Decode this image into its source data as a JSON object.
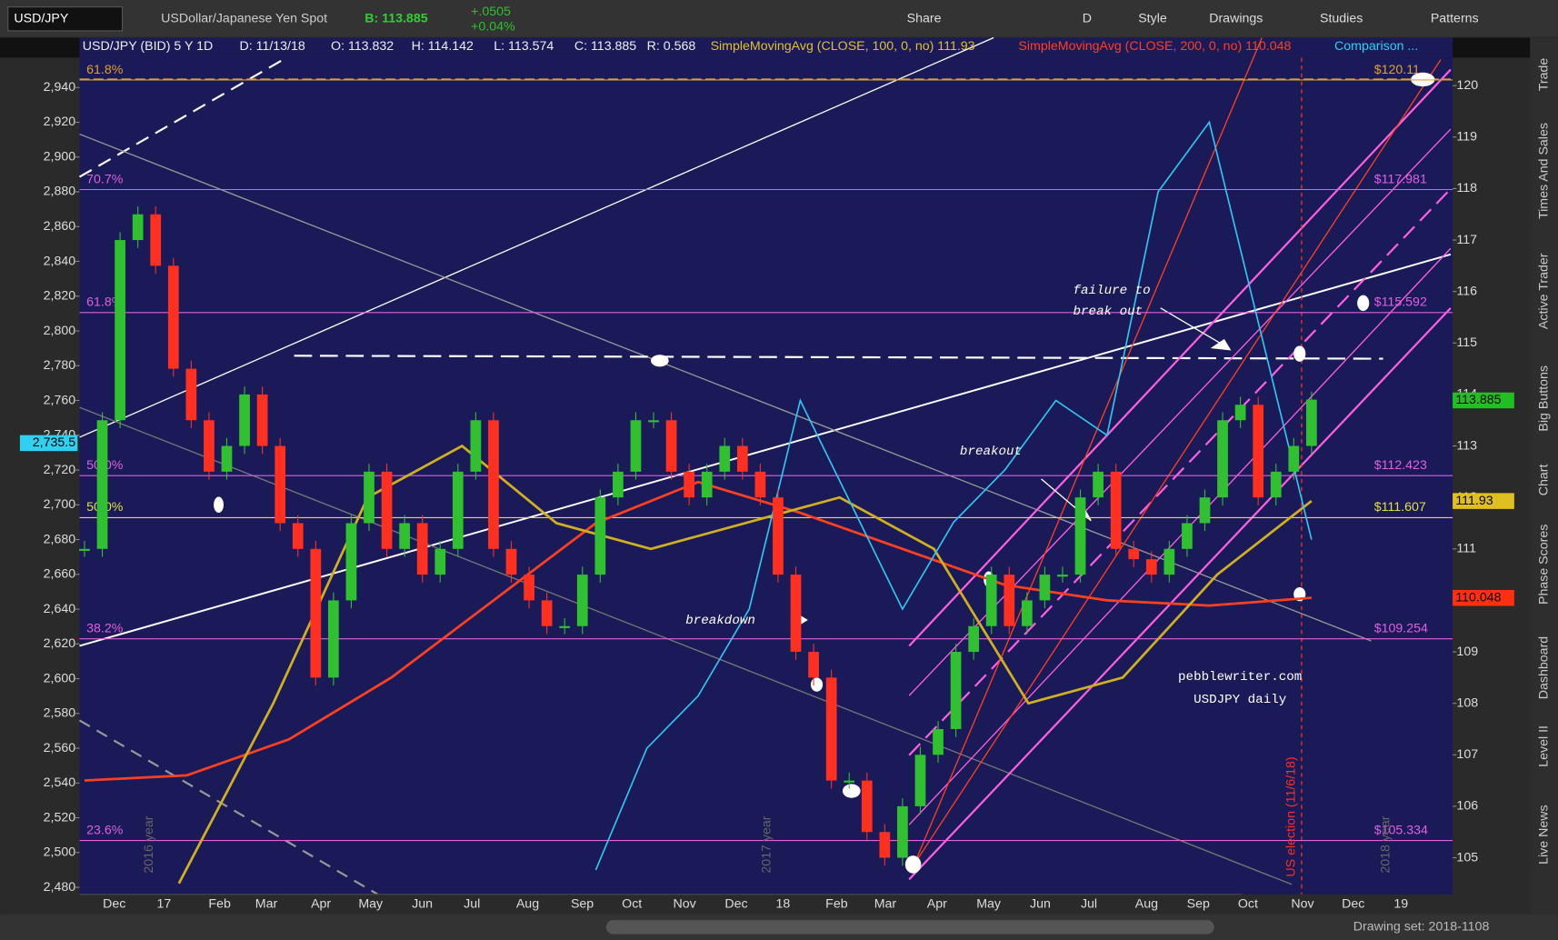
{
  "toolbar": {
    "symbol": "USD/JPY",
    "description": "USDollar/Japanese Yen Spot",
    "bid": "B: 113.885",
    "change": "+.0505",
    "change_pct": "+0.04%",
    "buttons": [
      "Share",
      "D",
      "Style",
      "Drawings",
      "Studies",
      "Patterns"
    ]
  },
  "header": {
    "items": [
      "USD/JPY (BID) 5 Y 1D",
      "D: 11/13/18",
      "O: 113.832",
      "H: 114.142",
      "L: 113.574",
      "C: 113.885",
      "R: 0.568"
    ],
    "studies": [
      {
        "text": "SimpleMovingAvg (CLOSE, 100, 0, no) 111.93",
        "color": "#e0c030"
      },
      {
        "text": "SimpleMovingAvg (CLOSE, 200, 0, no) 110.048",
        "color": "#ff4020"
      },
      {
        "text": "Comparison ...",
        "color": "#30d0f0"
      }
    ]
  },
  "sidebar": [
    "Trade",
    "Times And Sales",
    "Active Trader",
    "Big Buttons",
    "Chart",
    "Phase Scores",
    "Dashboard",
    "Level II",
    "Live News"
  ],
  "footer": {
    "drawing_set": "Drawing set: 2018-1108"
  },
  "chart": {
    "type": "candlestick",
    "categories": [
      "Dec",
      "17",
      "Feb",
      "Mar",
      "Apr",
      "May",
      "Jun",
      "Jul",
      "Aug",
      "Sep",
      "Oct",
      "Nov",
      "Dec",
      "18",
      "Feb",
      "Mar",
      "Apr",
      "May",
      "Jun",
      "Jul",
      "Aug",
      "Sep",
      "Oct",
      "Nov",
      "Dec",
      "19"
    ],
    "ylim": [
      104.29,
      120.93
    ],
    "yticks": [
      105,
      106,
      107,
      108,
      109,
      110,
      111,
      112,
      113,
      114,
      115,
      116,
      117,
      118,
      119,
      120
    ],
    "y2lim": [
      2476,
      2968.6
    ],
    "y2ticks": [
      {
        "value": 2480,
        "label": "2,480"
      },
      {
        "value": 2500,
        "label": "2,500"
      },
      {
        "value": 2520,
        "label": "2,520"
      },
      {
        "value": 2540,
        "label": "2,540"
      },
      {
        "value": 2560,
        "label": "2,560"
      },
      {
        "value": 2580,
        "label": "2,580"
      },
      {
        "value": 2600,
        "label": "2,600"
      },
      {
        "value": 2620,
        "label": "2,620"
      },
      {
        "value": 2640,
        "label": "2,640"
      },
      {
        "value": 2660,
        "label": "2,660"
      },
      {
        "value": 2680,
        "label": "2,680"
      },
      {
        "value": 2700,
        "label": "2,700"
      },
      {
        "value": 2720,
        "label": "2,720"
      },
      {
        "value": 2740,
        "label": "2,740"
      },
      {
        "value": 2760,
        "label": "2,760"
      },
      {
        "value": 2780,
        "label": "2,780"
      },
      {
        "value": 2800,
        "label": "2,800"
      },
      {
        "value": 2820,
        "label": "2,820"
      },
      {
        "value": 2840,
        "label": "2,840"
      },
      {
        "value": 2860,
        "label": "2,860"
      },
      {
        "value": 2880,
        "label": "2,880"
      },
      {
        "value": 2900,
        "label": "2,900"
      },
      {
        "value": 2920,
        "label": "2,920"
      },
      {
        "value": 2940,
        "label": "2,940"
      }
    ],
    "price": {
      "up_color": "#30c030",
      "down_color": "#ff3020",
      "values": [
        111,
        113.5,
        117,
        117.5,
        116.5,
        114.5,
        113.5,
        112.5,
        113,
        114,
        113,
        111.5,
        111,
        108.5,
        110,
        111.5,
        112.5,
        111,
        111.5,
        110.5,
        111,
        112.5,
        113.5,
        111,
        110.5,
        110,
        109.5,
        109.5,
        110.5,
        112,
        112.5,
        113.5,
        113.5,
        112.5,
        112,
        112.5,
        113,
        112.5,
        112,
        110.5,
        109,
        108.5,
        106.5,
        106.5,
        105.5,
        105,
        106,
        107,
        107.5,
        109,
        109.5,
        110.5,
        109.5,
        110,
        110.5,
        110.5,
        112,
        112.5,
        111,
        110.8,
        110.5,
        111,
        111.5,
        112,
        113.5,
        113.8,
        112,
        112.5,
        113,
        113.9
      ]
    },
    "series": [
      {
        "name": "SimpleMovingAvg 200",
        "color": "#ff4020",
        "values": [
          106.5,
          106.6,
          107.3,
          108.5,
          110,
          111.5,
          112.3,
          111.7,
          111,
          110.3,
          110,
          109.9,
          110.05
        ]
      },
      {
        "name": "SimpleMovingAvg 100",
        "color": "#d0b020",
        "values": [
          null,
          104.5,
          108,
          112,
          113,
          111.5,
          111,
          111.5,
          112,
          111,
          108,
          108.5,
          110.5,
          111.93
        ]
      },
      {
        "name": "Comparison",
        "color": "#30c8f0",
        "axis": "y2",
        "values": [
          null,
          null,
          null,
          null,
          null,
          null,
          null,
          null,
          null,
          null,
          2490,
          2560,
          2590,
          2640,
          2760,
          2700,
          2640,
          2690,
          2720,
          2760,
          2740,
          2880,
          2920,
          2800,
          2680
        ]
      }
    ],
    "current_tags": [
      {
        "value": 113.885,
        "color": "#20c020"
      },
      {
        "value": 111.93,
        "color": "#e0c020"
      },
      {
        "value": 110.048,
        "color": "#ff3010"
      }
    ],
    "y2_tag": {
      "value": 2735.5,
      "label": "2,735.5",
      "color": "#30d0f0"
    },
    "fib_levels": [
      {
        "pct": "61.8%",
        "price": "$120.11",
        "value": 120.11,
        "color": "#e0a030"
      },
      {
        "pct": "70.7%",
        "price": "$117.981",
        "value": 117.981,
        "color": "#e060e0"
      },
      {
        "pct": "61.8%",
        "price": "$115.592",
        "value": 115.592,
        "color": "#e060e0"
      },
      {
        "pct": "50.0%",
        "price": "$112.423",
        "value": 112.423,
        "color": "#e060e0"
      },
      {
        "pct": "50.0%",
        "price": "$111.607",
        "value": 111.607,
        "color": "#e0e040"
      },
      {
        "pct": "38.2%",
        "price": "$109.254",
        "value": 109.254,
        "color": "#e060e0"
      },
      {
        "pct": "23.6%",
        "price": "$105.334",
        "value": 105.334,
        "color": "#e060e0"
      }
    ],
    "annotations": {
      "failure": [
        "failure to",
        "break out"
      ],
      "breakout": "breakout",
      "breakdown": "breakdown",
      "site": "pebblewriter.com",
      "caption": "USDJPY daily",
      "election": "US election (11/6/18)",
      "years": [
        "2016 year",
        "2017 year",
        "2018 year"
      ]
    }
  }
}
